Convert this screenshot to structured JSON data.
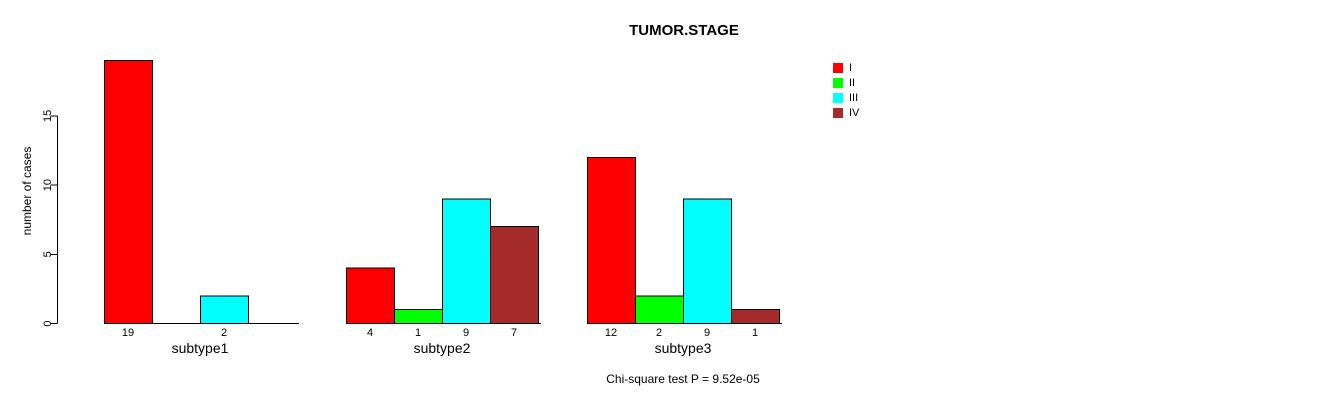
{
  "title": "TUMOR.STAGE",
  "chart_data": {
    "type": "bar",
    "title": "TUMOR.STAGE",
    "ylabel": "number of cases",
    "xlabel": "",
    "categories": [
      "subtype1",
      "subtype2",
      "subtype3"
    ],
    "series": [
      {
        "name": "I",
        "color": "#FF0000",
        "values": [
          19,
          4,
          12
        ]
      },
      {
        "name": "II",
        "color": "#00FF00",
        "values": [
          0,
          1,
          2
        ]
      },
      {
        "name": "III",
        "color": "#00FFFF",
        "values": [
          2,
          9,
          9
        ]
      },
      {
        "name": "IV",
        "color": "#A52A2A",
        "values": [
          0,
          7,
          1
        ]
      }
    ],
    "yticks": [
      0,
      5,
      10,
      15
    ],
    "ylim": [
      0,
      19
    ],
    "grid": false,
    "legend_position": "top-right",
    "bar_value_labels": "shown under each bar with nonzero value",
    "annotation": "Chi-square test P = 9.52e-05"
  },
  "colors": {
    "axis": "#000000",
    "background": "#FFFFFF"
  }
}
